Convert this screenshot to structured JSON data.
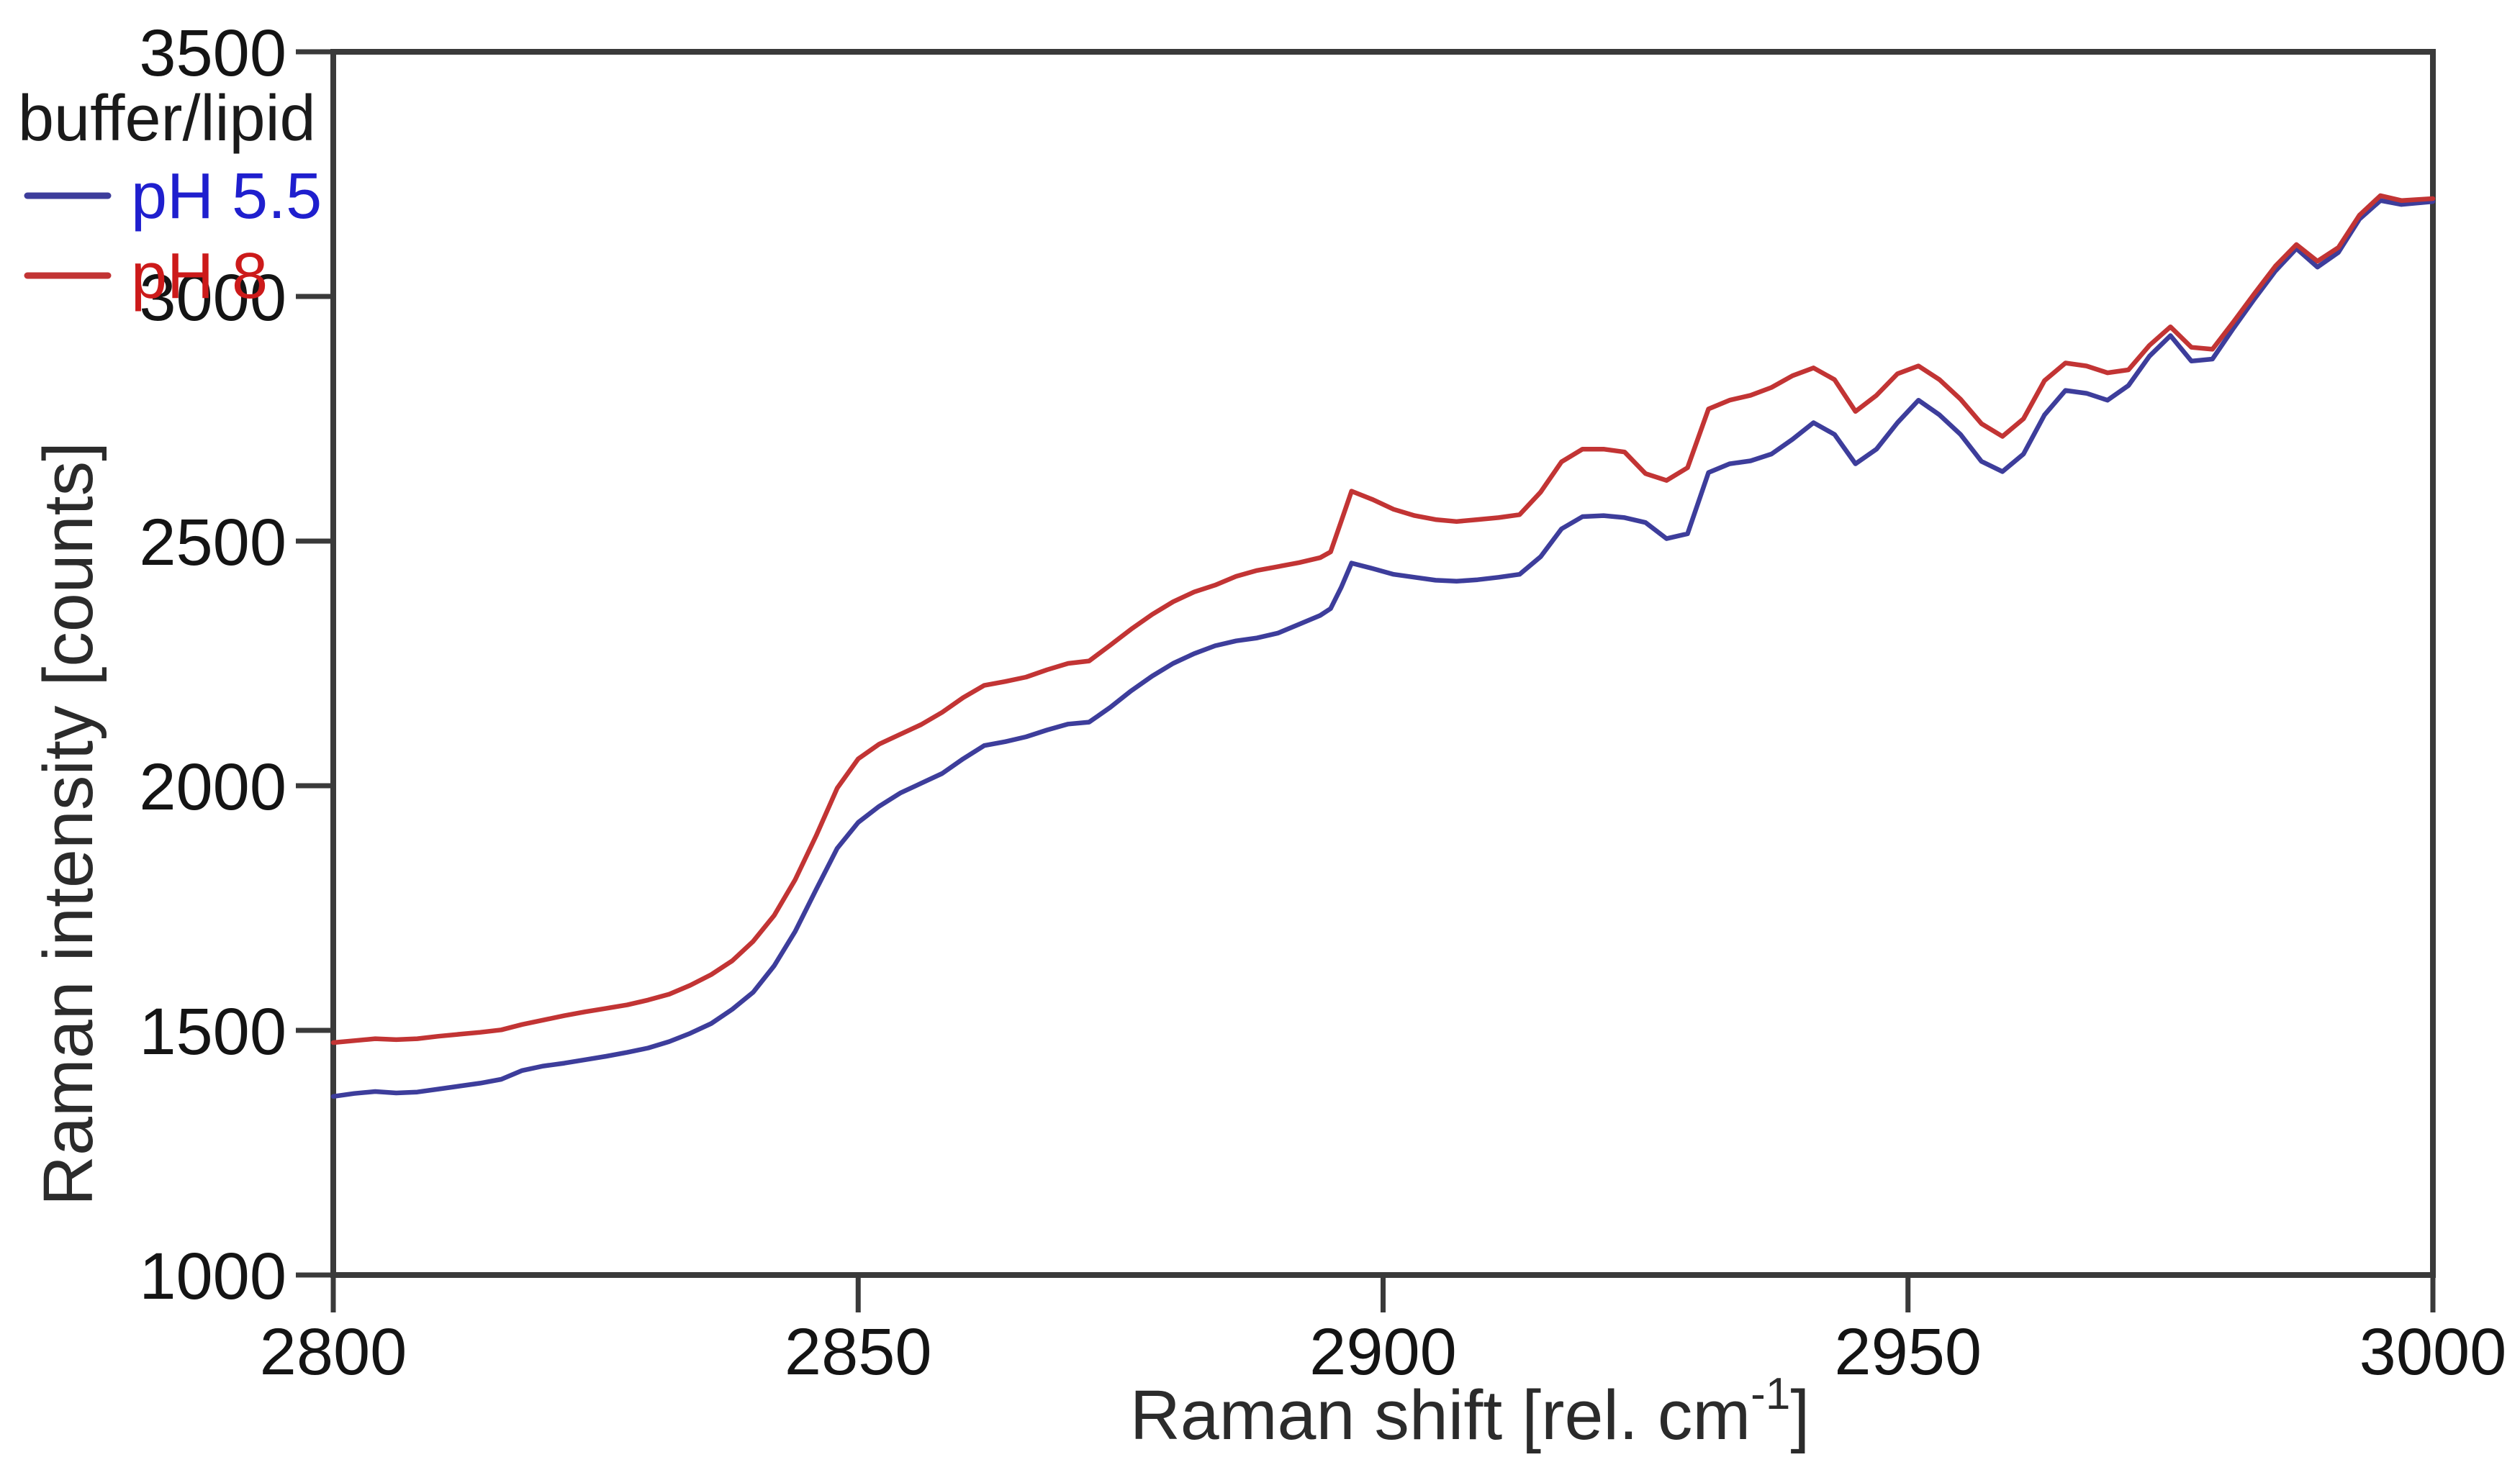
{
  "figure": {
    "background": "#ffffff",
    "frame_color": "#3a3a3a"
  },
  "legend": {
    "title": "buffer/lipid",
    "items": [
      {
        "label": "pH 5.5",
        "text_color": "#1f1fce",
        "swatch_color": "#3d3d9b"
      },
      {
        "label": "pH 8",
        "text_color": "#cc1a1a",
        "swatch_color": "#c23434"
      }
    ]
  },
  "chart_data": {
    "type": "line",
    "title": "",
    "xlabel": "Raman shift [rel. cm⁻¹]",
    "xlabel_parts": {
      "main": "Raman shift [rel. cm",
      "sup": "-1",
      "end": "]"
    },
    "ylabel": "Raman intensity [counts]",
    "xlim": [
      2800,
      3000
    ],
    "ylim": [
      1000,
      3500
    ],
    "x_ticks": [
      2800,
      2850,
      2900,
      2950,
      3000
    ],
    "y_ticks": [
      1000,
      1500,
      2000,
      2500,
      3000,
      3500
    ],
    "grid": false,
    "legend_position": "top-left-outside",
    "series": [
      {
        "name": "pH 5.5",
        "color": "#3d3d9b",
        "points": [
          [
            2800,
            1365
          ],
          [
            2802,
            1371
          ],
          [
            2804,
            1375
          ],
          [
            2806,
            1372
          ],
          [
            2808,
            1374
          ],
          [
            2810,
            1380
          ],
          [
            2812,
            1386
          ],
          [
            2814,
            1392
          ],
          [
            2816,
            1400
          ],
          [
            2818,
            1418
          ],
          [
            2820,
            1427
          ],
          [
            2822,
            1433
          ],
          [
            2824,
            1440
          ],
          [
            2826,
            1447
          ],
          [
            2828,
            1455
          ],
          [
            2830,
            1464
          ],
          [
            2832,
            1477
          ],
          [
            2834,
            1494
          ],
          [
            2836,
            1514
          ],
          [
            2838,
            1543
          ],
          [
            2840,
            1578
          ],
          [
            2842,
            1632
          ],
          [
            2844,
            1702
          ],
          [
            2846,
            1788
          ],
          [
            2848,
            1872
          ],
          [
            2850,
            1925
          ],
          [
            2852,
            1958
          ],
          [
            2854,
            1985
          ],
          [
            2856,
            2005
          ],
          [
            2858,
            2025
          ],
          [
            2860,
            2055
          ],
          [
            2862,
            2082
          ],
          [
            2864,
            2090
          ],
          [
            2866,
            2100
          ],
          [
            2868,
            2114
          ],
          [
            2870,
            2126
          ],
          [
            2872,
            2130
          ],
          [
            2874,
            2160
          ],
          [
            2876,
            2194
          ],
          [
            2878,
            2224
          ],
          [
            2880,
            2250
          ],
          [
            2882,
            2270
          ],
          [
            2884,
            2286
          ],
          [
            2886,
            2296
          ],
          [
            2888,
            2302
          ],
          [
            2890,
            2312
          ],
          [
            2892,
            2330
          ],
          [
            2894,
            2348
          ],
          [
            2895,
            2362
          ],
          [
            2896,
            2405
          ],
          [
            2897,
            2455
          ],
          [
            2899,
            2444
          ],
          [
            2901,
            2432
          ],
          [
            2903,
            2426
          ],
          [
            2905,
            2420
          ],
          [
            2907,
            2418
          ],
          [
            2909,
            2421
          ],
          [
            2911,
            2426
          ],
          [
            2913,
            2432
          ],
          [
            2915,
            2468
          ],
          [
            2917,
            2525
          ],
          [
            2919,
            2550
          ],
          [
            2921,
            2552
          ],
          [
            2923,
            2548
          ],
          [
            2925,
            2538
          ],
          [
            2927,
            2505
          ],
          [
            2929,
            2515
          ],
          [
            2931,
            2640
          ],
          [
            2933,
            2658
          ],
          [
            2935,
            2664
          ],
          [
            2937,
            2678
          ],
          [
            2939,
            2708
          ],
          [
            2941,
            2742
          ],
          [
            2943,
            2718
          ],
          [
            2945,
            2658
          ],
          [
            2947,
            2688
          ],
          [
            2949,
            2742
          ],
          [
            2951,
            2788
          ],
          [
            2953,
            2758
          ],
          [
            2955,
            2718
          ],
          [
            2957,
            2663
          ],
          [
            2959,
            2642
          ],
          [
            2961,
            2678
          ],
          [
            2963,
            2758
          ],
          [
            2965,
            2808
          ],
          [
            2967,
            2802
          ],
          [
            2969,
            2788
          ],
          [
            2971,
            2818
          ],
          [
            2973,
            2878
          ],
          [
            2975,
            2920
          ],
          [
            2977,
            2868
          ],
          [
            2979,
            2872
          ],
          [
            2981,
            2935
          ],
          [
            2983,
            2995
          ],
          [
            2985,
            3052
          ],
          [
            2987,
            3098
          ],
          [
            2989,
            3060
          ],
          [
            2991,
            3090
          ],
          [
            2993,
            3158
          ],
          [
            2995,
            3196
          ],
          [
            2997,
            3188
          ],
          [
            3000,
            3194
          ]
        ]
      },
      {
        "name": "pH 8",
        "color": "#c23434",
        "points": [
          [
            2800,
            1475
          ],
          [
            2802,
            1479
          ],
          [
            2804,
            1483
          ],
          [
            2806,
            1481
          ],
          [
            2808,
            1483
          ],
          [
            2810,
            1488
          ],
          [
            2812,
            1492
          ],
          [
            2814,
            1496
          ],
          [
            2816,
            1501
          ],
          [
            2818,
            1512
          ],
          [
            2820,
            1521
          ],
          [
            2822,
            1530
          ],
          [
            2824,
            1538
          ],
          [
            2826,
            1545
          ],
          [
            2828,
            1552
          ],
          [
            2830,
            1562
          ],
          [
            2832,
            1574
          ],
          [
            2834,
            1592
          ],
          [
            2836,
            1614
          ],
          [
            2838,
            1642
          ],
          [
            2840,
            1682
          ],
          [
            2842,
            1735
          ],
          [
            2844,
            1808
          ],
          [
            2846,
            1898
          ],
          [
            2848,
            1995
          ],
          [
            2850,
            2055
          ],
          [
            2852,
            2085
          ],
          [
            2854,
            2105
          ],
          [
            2856,
            2125
          ],
          [
            2858,
            2150
          ],
          [
            2860,
            2180
          ],
          [
            2862,
            2205
          ],
          [
            2864,
            2213
          ],
          [
            2866,
            2222
          ],
          [
            2868,
            2237
          ],
          [
            2870,
            2250
          ],
          [
            2872,
            2255
          ],
          [
            2874,
            2287
          ],
          [
            2876,
            2320
          ],
          [
            2878,
            2350
          ],
          [
            2880,
            2376
          ],
          [
            2882,
            2396
          ],
          [
            2884,
            2410
          ],
          [
            2886,
            2428
          ],
          [
            2888,
            2440
          ],
          [
            2890,
            2448
          ],
          [
            2892,
            2456
          ],
          [
            2894,
            2466
          ],
          [
            2895,
            2478
          ],
          [
            2896,
            2540
          ],
          [
            2897,
            2602
          ],
          [
            2899,
            2585
          ],
          [
            2901,
            2565
          ],
          [
            2903,
            2552
          ],
          [
            2905,
            2544
          ],
          [
            2907,
            2540
          ],
          [
            2909,
            2544
          ],
          [
            2911,
            2548
          ],
          [
            2913,
            2554
          ],
          [
            2915,
            2600
          ],
          [
            2917,
            2662
          ],
          [
            2919,
            2688
          ],
          [
            2921,
            2688
          ],
          [
            2923,
            2682
          ],
          [
            2925,
            2638
          ],
          [
            2927,
            2624
          ],
          [
            2929,
            2650
          ],
          [
            2931,
            2770
          ],
          [
            2933,
            2788
          ],
          [
            2935,
            2798
          ],
          [
            2937,
            2814
          ],
          [
            2939,
            2838
          ],
          [
            2941,
            2854
          ],
          [
            2943,
            2830
          ],
          [
            2945,
            2765
          ],
          [
            2947,
            2798
          ],
          [
            2949,
            2842
          ],
          [
            2951,
            2858
          ],
          [
            2953,
            2830
          ],
          [
            2955,
            2790
          ],
          [
            2957,
            2740
          ],
          [
            2959,
            2714
          ],
          [
            2961,
            2750
          ],
          [
            2963,
            2828
          ],
          [
            2965,
            2864
          ],
          [
            2967,
            2858
          ],
          [
            2969,
            2844
          ],
          [
            2971,
            2850
          ],
          [
            2973,
            2900
          ],
          [
            2975,
            2938
          ],
          [
            2977,
            2896
          ],
          [
            2979,
            2892
          ],
          [
            2981,
            2948
          ],
          [
            2983,
            3006
          ],
          [
            2985,
            3062
          ],
          [
            2987,
            3106
          ],
          [
            2989,
            3072
          ],
          [
            2991,
            3100
          ],
          [
            2993,
            3166
          ],
          [
            2995,
            3206
          ],
          [
            2997,
            3196
          ],
          [
            3000,
            3200
          ]
        ]
      }
    ]
  }
}
